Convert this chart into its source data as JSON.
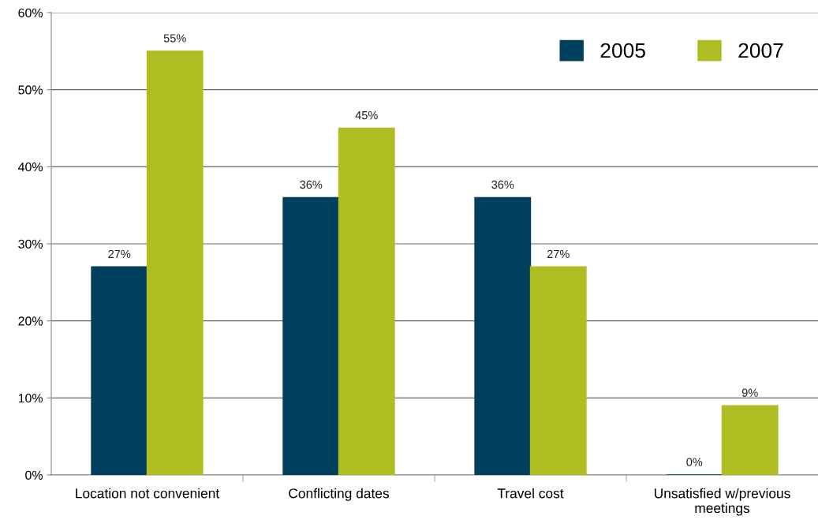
{
  "chart_data": {
    "type": "bar",
    "categories": [
      "Location not convenient",
      "Conflicting dates",
      "Travel cost",
      "Unsatisfied w/previous\nmeetings"
    ],
    "series": [
      {
        "name": "2005",
        "color": "#003f5e",
        "values": [
          27,
          36,
          36,
          0
        ],
        "value_labels": [
          "27%",
          "36%",
          "36%",
          "0%"
        ]
      },
      {
        "name": "2007",
        "color": "#afbd22",
        "values": [
          55,
          45,
          27,
          9
        ],
        "value_labels": [
          "55%",
          "45%",
          "27%",
          "9%"
        ]
      }
    ],
    "ylim": [
      0,
      60
    ],
    "yticks": [
      {
        "value": 0,
        "label": "0%"
      },
      {
        "value": 10,
        "label": "10%"
      },
      {
        "value": 20,
        "label": "20%"
      },
      {
        "value": 30,
        "label": "30%"
      },
      {
        "value": 40,
        "label": "40%"
      },
      {
        "value": 50,
        "label": "50%"
      },
      {
        "value": 60,
        "label": "60%"
      }
    ],
    "grid": "y",
    "legend": "top right"
  }
}
